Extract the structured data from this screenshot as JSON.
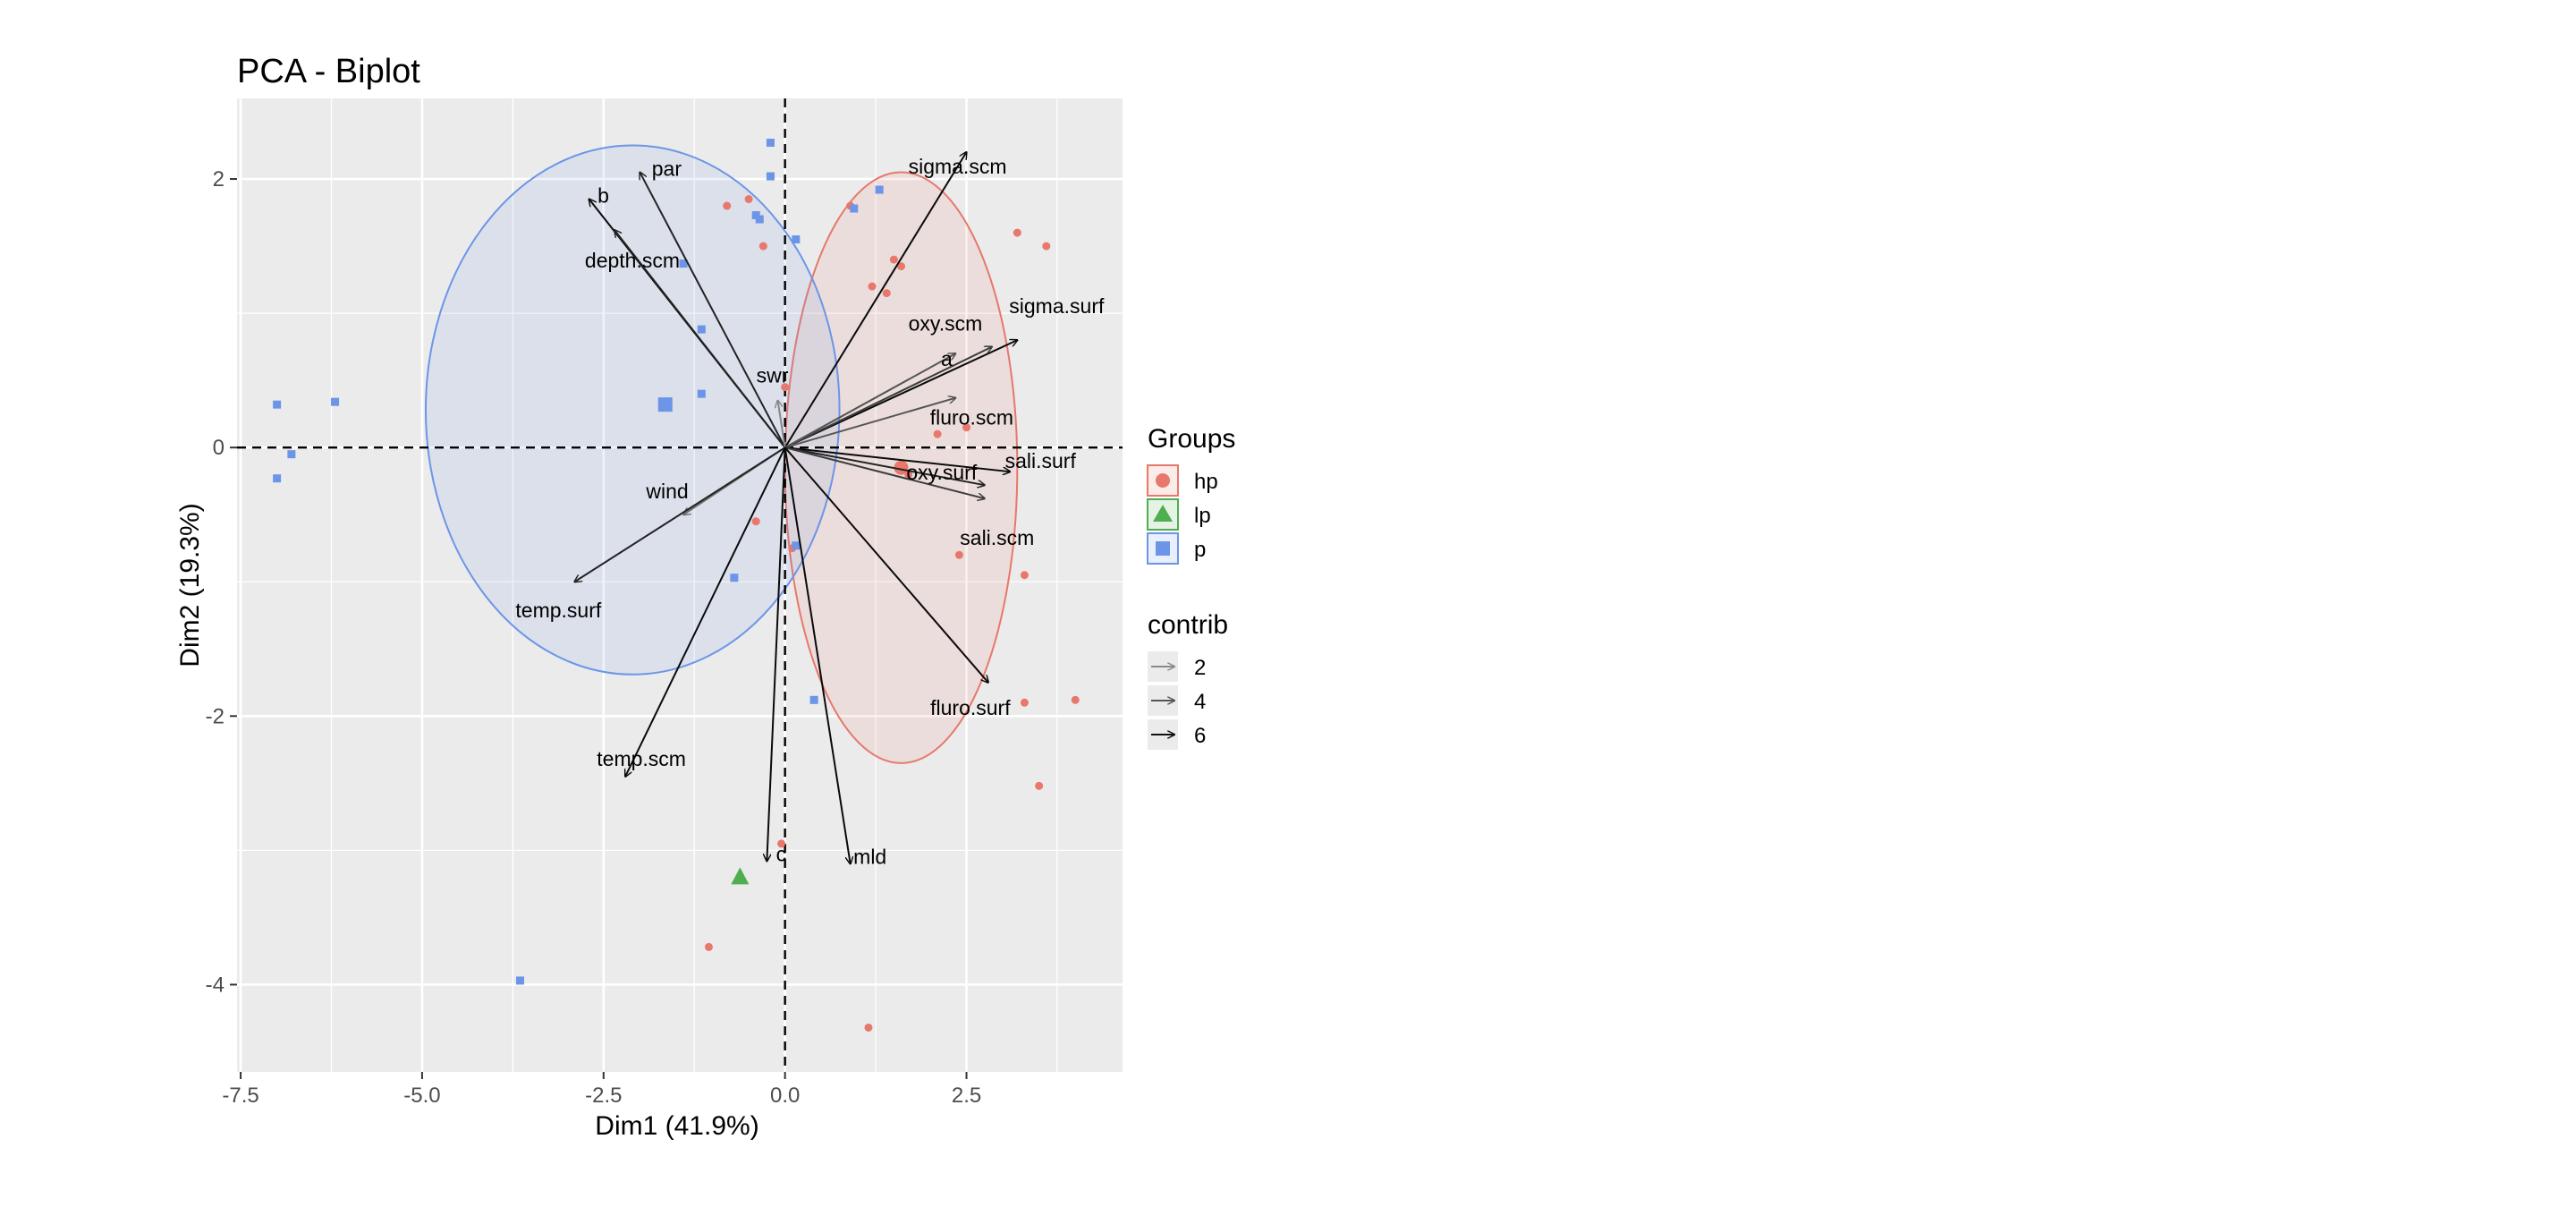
{
  "chart_data": {
    "type": "scatter",
    "title": "PCA - Biplot",
    "xlabel": "Dim1 (41.9%)",
    "ylabel": "Dim2 (19.3%)",
    "xlim": [
      -7.55,
      4.65
    ],
    "ylim": [
      -4.65,
      2.6
    ],
    "x_ticks": [
      -7.5,
      -5.0,
      -2.5,
      0.0,
      2.5
    ],
    "x_tick_labels": [
      "-7.5",
      "-5.0",
      "-2.5",
      "0.0",
      "2.5"
    ],
    "y_ticks": [
      2,
      0,
      -2,
      -4
    ],
    "y_tick_labels": [
      "2",
      "0",
      "-2",
      "-4"
    ],
    "grid": true,
    "legend_position": "right",
    "groups_legend": {
      "title": "Groups",
      "items": [
        {
          "label": "hp",
          "color": "#E7786B",
          "shape": "circle"
        },
        {
          "label": "lp",
          "color": "#4FAE4F",
          "shape": "triangle"
        },
        {
          "label": "p",
          "color": "#6C95E8",
          "shape": "square"
        }
      ]
    },
    "contrib_legend": {
      "title": "contrib",
      "items": [
        {
          "label": "2",
          "color": "#8a8a8a"
        },
        {
          "label": "4",
          "color": "#555555"
        },
        {
          "label": "6",
          "color": "#111111"
        }
      ]
    },
    "series": [
      {
        "name": "hp",
        "color": "#E7786B",
        "points": [
          [
            -0.8,
            1.8
          ],
          [
            -0.5,
            1.85
          ],
          [
            -0.3,
            1.5
          ],
          [
            0.9,
            1.8
          ],
          [
            1.5,
            1.4
          ],
          [
            1.6,
            1.35
          ],
          [
            1.2,
            1.2
          ],
          [
            1.4,
            1.15
          ],
          [
            3.2,
            1.6
          ],
          [
            3.6,
            1.5
          ],
          [
            0.0,
            0.45
          ],
          [
            2.5,
            0.15
          ],
          [
            2.1,
            0.1
          ],
          [
            1.7,
            -0.2
          ],
          [
            -0.4,
            -0.55
          ],
          [
            0.1,
            -0.75
          ],
          [
            2.4,
            -0.8
          ],
          [
            3.3,
            -0.95
          ],
          [
            3.3,
            -1.9
          ],
          [
            4.0,
            -1.88
          ],
          [
            3.5,
            -2.52
          ],
          [
            -0.05,
            -2.95
          ],
          [
            -1.05,
            -3.72
          ],
          [
            1.15,
            -4.32
          ]
        ]
      },
      {
        "name": "lp",
        "color": "#4FAE4F",
        "points": [
          [
            -0.62,
            -3.2
          ]
        ]
      },
      {
        "name": "p",
        "color": "#6C95E8",
        "points": [
          [
            -0.2,
            2.27
          ],
          [
            -0.2,
            2.02
          ],
          [
            -0.4,
            1.73
          ],
          [
            -0.35,
            1.7
          ],
          [
            1.3,
            1.92
          ],
          [
            0.95,
            1.78
          ],
          [
            0.15,
            1.55
          ],
          [
            -1.4,
            1.37
          ],
          [
            -1.15,
            0.88
          ],
          [
            -1.15,
            0.4
          ],
          [
            -1.65,
            0.32
          ],
          [
            -6.2,
            0.34
          ],
          [
            -7.0,
            0.32
          ],
          [
            -6.8,
            -0.05
          ],
          [
            -7.0,
            -0.23
          ],
          [
            -0.7,
            -0.97
          ],
          [
            0.15,
            -0.73
          ],
          [
            0.4,
            -1.88
          ],
          [
            -3.65,
            -3.97
          ]
        ]
      }
    ],
    "group_means": [
      {
        "group": "hp",
        "x": 1.6,
        "y": -0.15
      },
      {
        "group": "lp",
        "x": -0.62,
        "y": -3.2
      },
      {
        "group": "p",
        "x": -1.65,
        "y": 0.32
      }
    ],
    "ellipses": [
      {
        "group": "hp",
        "cx": 1.6,
        "cy": -0.15,
        "rx": 1.6,
        "ry": 2.2
      },
      {
        "group": "p",
        "cx": -2.1,
        "cy": 0.28,
        "rx": 2.85,
        "ry": 1.97
      }
    ],
    "variables": [
      {
        "name": "sigma.scm",
        "x": 2.5,
        "y": 2.2,
        "contrib": 6
      },
      {
        "name": "par",
        "x": -2.0,
        "y": 2.05,
        "contrib": 5
      },
      {
        "name": "b",
        "x": -2.7,
        "y": 1.85,
        "contrib": 6
      },
      {
        "name": "depth.scm",
        "x": -2.35,
        "y": 1.62,
        "contrib": 5
      },
      {
        "name": "sigma.surf",
        "x": 3.2,
        "y": 0.8,
        "contrib": 6
      },
      {
        "name": "oxy.scm",
        "x": 2.85,
        "y": 0.75,
        "contrib": 4
      },
      {
        "name": "a",
        "x": 2.35,
        "y": 0.7,
        "contrib": 3
      },
      {
        "name": "fluro.scm",
        "x": 2.35,
        "y": 0.37,
        "contrib": 3
      },
      {
        "name": "swr",
        "x": -0.1,
        "y": 0.35,
        "contrib": 1
      },
      {
        "name": "sali.surf",
        "x": 3.1,
        "y": -0.18,
        "contrib": 6
      },
      {
        "name": "oxy.surf",
        "x": 2.75,
        "y": -0.28,
        "contrib": 5
      },
      {
        "name": "sali.scm",
        "x": 2.75,
        "y": -0.38,
        "contrib": 4
      },
      {
        "name": "wind",
        "x": -1.4,
        "y": -0.5,
        "contrib": 2
      },
      {
        "name": "temp.surf",
        "x": -2.9,
        "y": -1.0,
        "contrib": 5
      },
      {
        "name": "fluro.surf",
        "x": 2.8,
        "y": -1.75,
        "contrib": 6
      },
      {
        "name": "temp.scm",
        "x": -2.2,
        "y": -2.45,
        "contrib": 6
      },
      {
        "name": "c",
        "x": -0.25,
        "y": -3.08,
        "contrib": 6
      },
      {
        "name": "mld",
        "x": 0.9,
        "y": -3.1,
        "contrib": 6
      }
    ]
  }
}
